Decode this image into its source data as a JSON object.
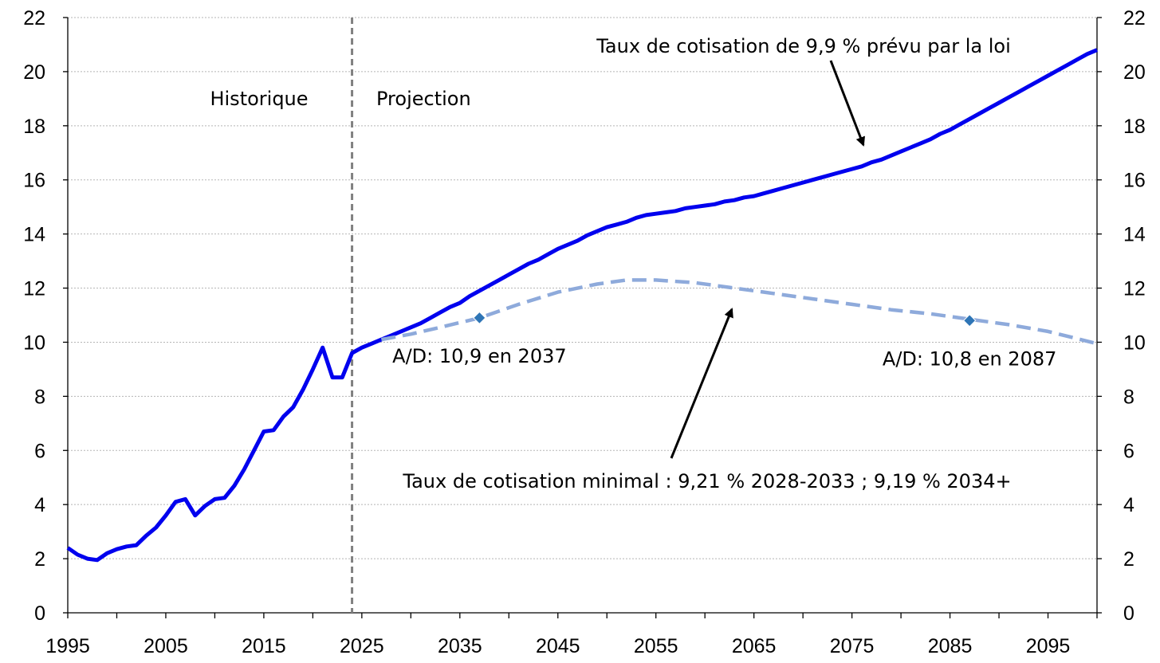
{
  "chart_data": {
    "type": "line",
    "title": "",
    "xlabel": "",
    "ylabel": "",
    "xlim": [
      1995,
      2100
    ],
    "ylim": [
      0,
      22
    ],
    "x_ticks": [
      "1995",
      "2005",
      "2015",
      "2025",
      "2035",
      "2045",
      "2055",
      "2065",
      "2075",
      "2085",
      "2095"
    ],
    "y_ticks": [
      "0",
      "2",
      "4",
      "6",
      "8",
      "10",
      "12",
      "14",
      "16",
      "18",
      "20",
      "22"
    ],
    "grid": true,
    "divider_year": 2024,
    "region_labels": {
      "historique": "Historique",
      "projection": "Projection"
    },
    "series": [
      {
        "id": "actual",
        "style": "solid",
        "color": "#0000ee",
        "x": [
          1995,
          1996,
          1997,
          1998,
          1999,
          2000,
          2001,
          2002,
          2003,
          2004,
          2005,
          2006,
          2007,
          2008,
          2009,
          2010,
          2011,
          2012,
          2013,
          2014,
          2015,
          2016,
          2017,
          2018,
          2019,
          2020,
          2021,
          2022,
          2023,
          2024,
          2025,
          2026,
          2027,
          2028,
          2029,
          2030,
          2031,
          2032,
          2033,
          2034,
          2035,
          2036,
          2037,
          2038,
          2039,
          2040,
          2041,
          2042,
          2043,
          2044,
          2045,
          2046,
          2047,
          2048,
          2049,
          2050,
          2051,
          2052,
          2053,
          2054,
          2055,
          2056,
          2057,
          2058,
          2059,
          2060,
          2061,
          2062,
          2063,
          2064,
          2065,
          2066,
          2067,
          2068,
          2069,
          2070,
          2071,
          2072,
          2073,
          2074,
          2075,
          2076,
          2077,
          2078,
          2079,
          2080,
          2081,
          2082,
          2083,
          2084,
          2085,
          2086,
          2087,
          2088,
          2089,
          2090,
          2091,
          2092,
          2093,
          2094,
          2095,
          2096,
          2097,
          2098,
          2099,
          2100
        ],
        "y": [
          2.4,
          2.15,
          2.0,
          1.95,
          2.2,
          2.35,
          2.45,
          2.5,
          2.85,
          3.15,
          3.6,
          4.1,
          4.2,
          3.6,
          3.95,
          4.2,
          4.25,
          4.7,
          5.3,
          6.0,
          6.7,
          6.75,
          7.25,
          7.6,
          8.25,
          9.0,
          9.8,
          8.7,
          8.7,
          9.6,
          9.8,
          9.95,
          10.1,
          10.25,
          10.4,
          10.55,
          10.7,
          10.9,
          11.1,
          11.3,
          11.45,
          11.7,
          11.9,
          12.1,
          12.3,
          12.5,
          12.7,
          12.9,
          13.05,
          13.25,
          13.45,
          13.6,
          13.75,
          13.95,
          14.1,
          14.25,
          14.35,
          14.45,
          14.6,
          14.7,
          14.75,
          14.8,
          14.85,
          14.95,
          15.0,
          15.05,
          15.1,
          15.2,
          15.25,
          15.35,
          15.4,
          15.5,
          15.6,
          15.7,
          15.8,
          15.9,
          16.0,
          16.1,
          16.2,
          16.3,
          16.4,
          16.5,
          16.65,
          16.75,
          16.9,
          17.05,
          17.2,
          17.35,
          17.5,
          17.7,
          17.85,
          18.05,
          18.25,
          18.45,
          18.65,
          18.85,
          19.05,
          19.25,
          19.45,
          19.65,
          19.85,
          20.05,
          20.25,
          20.45,
          20.65,
          20.8
        ]
      },
      {
        "id": "minimal",
        "style": "dashed",
        "color": "#8eaadb",
        "x": [
          2027,
          2030,
          2033,
          2037,
          2041,
          2045,
          2049,
          2052,
          2055,
          2059,
          2063,
          2067,
          2071,
          2075,
          2079,
          2083,
          2087,
          2091,
          2095,
          2100
        ],
        "y": [
          10.1,
          10.3,
          10.55,
          10.9,
          11.4,
          11.85,
          12.15,
          12.3,
          12.3,
          12.2,
          12.0,
          11.8,
          11.6,
          11.4,
          11.2,
          11.05,
          10.85,
          10.65,
          10.4,
          9.95
        ]
      }
    ],
    "markers": [
      {
        "x": 2037,
        "y": 10.9,
        "label": "A/D: 10,9 en 2037",
        "color": "#2e75b6"
      },
      {
        "x": 2087,
        "y": 10.8,
        "label": "A/D: 10,8 en 2087",
        "color": "#2e75b6"
      }
    ],
    "annotations": [
      {
        "text": "Taux de cotisation de 9,9 % prévu par la loi"
      },
      {
        "text": "Taux de cotisation minimal : 9,21 % 2028-2033 ; 9,19 % 2034+"
      }
    ]
  }
}
